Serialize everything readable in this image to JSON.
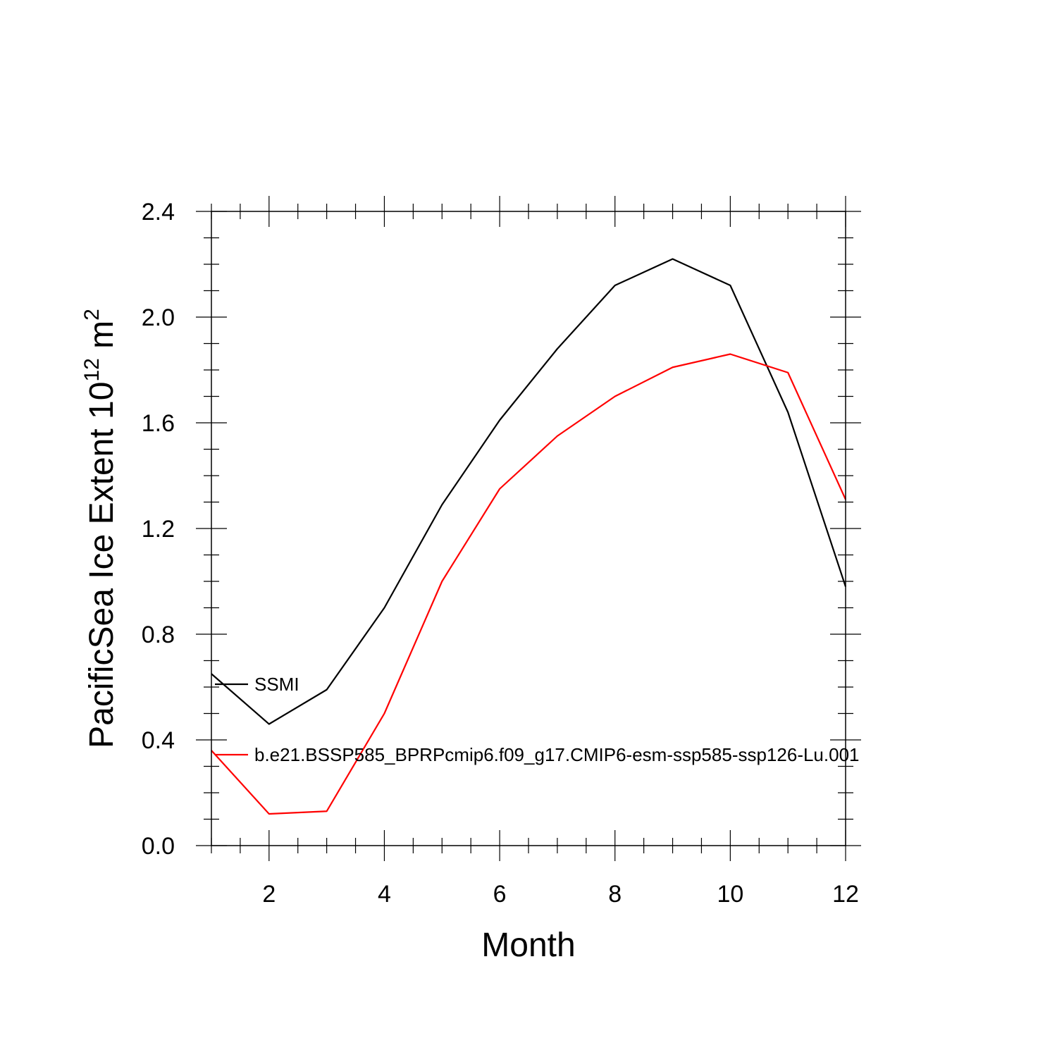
{
  "chart_data": {
    "type": "line",
    "title": "",
    "xlabel": "Month",
    "ylabel": {
      "text": "PacificSea Ice Extent 10",
      "exp": "12",
      "unit": " m",
      "unit_exp": "2"
    },
    "xlim": [
      1,
      12
    ],
    "ylim": [
      0,
      2.4
    ],
    "xticks": [
      2,
      4,
      6,
      8,
      10,
      12
    ],
    "xtick_labels": [
      "2",
      "4",
      "6",
      "8",
      "10",
      "12"
    ],
    "yticks": [
      0,
      0.4,
      0.8,
      1.2,
      1.6,
      2.0,
      2.4
    ],
    "ytick_labels": [
      "0.0",
      "0.4",
      "0.8",
      "1.2",
      "1.6",
      "2.0",
      "2.4"
    ],
    "grid": false,
    "legend_position": "left",
    "x": [
      1,
      2,
      3,
      4,
      5,
      6,
      7,
      8,
      9,
      10,
      11,
      12
    ],
    "series": [
      {
        "name": "SSMI",
        "color": "#000000",
        "values": [
          0.65,
          0.46,
          0.59,
          0.9,
          1.29,
          1.61,
          1.88,
          2.12,
          2.22,
          2.12,
          1.64,
          0.98
        ]
      },
      {
        "name": "b.e21.BSSP585_BPRPcmip6.f09_g17.CMIP6-esm-ssp585-ssp126-Lu.001",
        "color": "#ff0000",
        "values": [
          0.36,
          0.12,
          0.13,
          0.5,
          1.0,
          1.35,
          1.55,
          1.7,
          1.81,
          1.86,
          1.79,
          1.31
        ]
      }
    ]
  }
}
